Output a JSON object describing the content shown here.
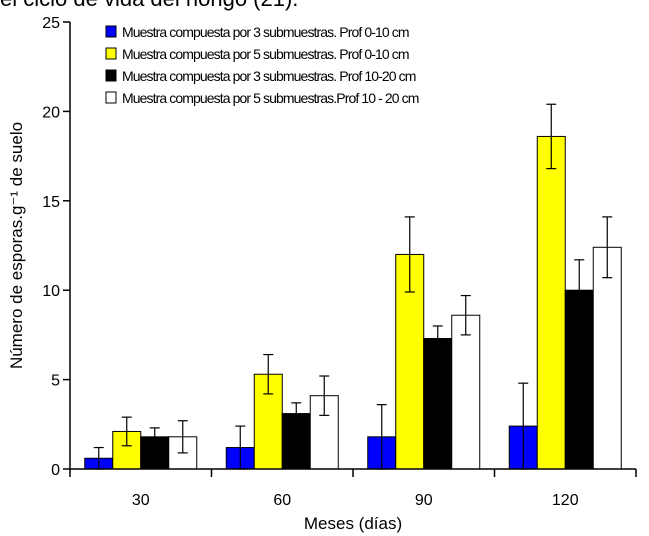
{
  "header": {
    "cut_text": "el ciclo de vida del hongo (21)."
  },
  "chart_data": {
    "type": "bar",
    "title": "",
    "xlabel": "Meses  (días)",
    "ylabel": "Número de esporas.g⁻¹ de suelo",
    "ylim": [
      0,
      25
    ],
    "yticks": [
      0,
      5,
      10,
      15,
      20,
      25
    ],
    "categories": [
      "30",
      "60",
      "90",
      "120"
    ],
    "legend_position": "top-left",
    "grid": false,
    "series": [
      {
        "name": "Muestra compuesta por 3 submuestras. Prof 0-10 cm",
        "color": "#0000ff",
        "values": [
          0.6,
          1.2,
          1.8,
          2.4
        ],
        "errors": [
          0.6,
          1.2,
          1.8,
          2.4
        ]
      },
      {
        "name": "Muestra compuesta por 5 submuestras.  Prof 0-10 cm",
        "color": "#ffff00",
        "values": [
          2.1,
          5.3,
          12.0,
          18.6
        ],
        "errors": [
          0.8,
          1.1,
          2.1,
          1.8
        ]
      },
      {
        "name": "Muestra compuesta por 3 submuestras.  Prof 10-20 cm",
        "color": "#000000",
        "values": [
          1.8,
          3.1,
          7.3,
          10.0
        ],
        "errors": [
          0.5,
          0.6,
          0.7,
          1.7
        ]
      },
      {
        "name": "Muestra compuesta por  5 submuestras.Prof 10 - 20 cm",
        "color": "#ffffff",
        "values": [
          1.8,
          4.1,
          8.6,
          12.4
        ],
        "errors": [
          0.9,
          1.1,
          1.1,
          1.7
        ]
      }
    ]
  }
}
